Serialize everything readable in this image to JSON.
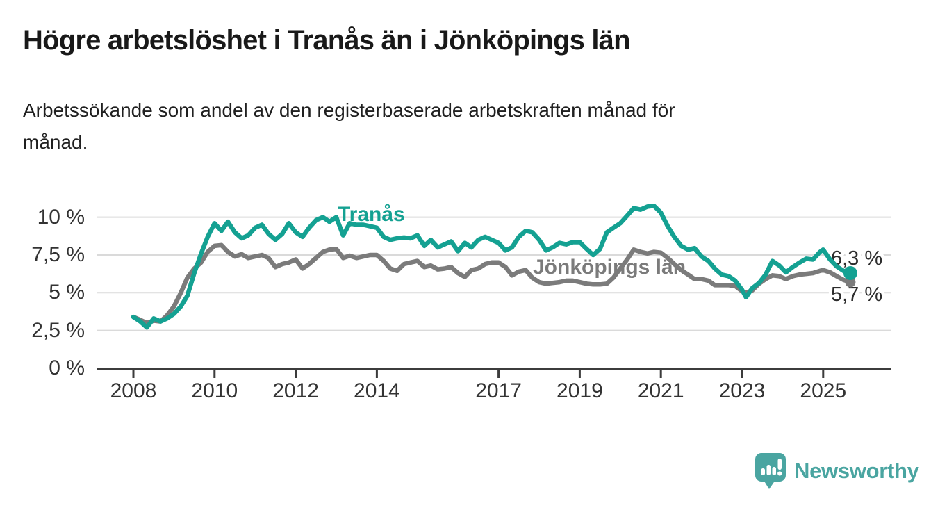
{
  "header": {
    "title": "Högre arbetslöshet i Tranås än i Jönköpings län",
    "subtitle": "Arbetssökande som andel av den registerbaserade arbetskraften månad för månad."
  },
  "branding": {
    "logo_text": "Newsworthy",
    "logo_icon": "speech-bubble-bar-chart"
  },
  "colors": {
    "tranas": "#14a192",
    "jonkoping": "#7b7b7b",
    "grid": "#dadada",
    "axis": "#3c3c3c",
    "value_label": "#2d2d2d",
    "tick_text": "#333333",
    "logo": "#4aa5a1"
  },
  "chart_data": {
    "type": "line",
    "title": "Högre arbetslöshet i Tranås än i Jönköpings län",
    "subtitle": "Arbetssökande som andel av den registerbaserade arbetskraften månad för månad.",
    "unit": "%",
    "grid": "horizontal",
    "legend": "inline-labels",
    "ylim": [
      0,
      11.5
    ],
    "xlim": [
      2007.1,
      2026.7
    ],
    "y_ticks": [
      {
        "value": 0,
        "label": "0 %"
      },
      {
        "value": 2.5,
        "label": "2,5 %"
      },
      {
        "value": 5,
        "label": "5 %"
      },
      {
        "value": 7.5,
        "label": "7,5 %"
      },
      {
        "value": 10,
        "label": "10 %"
      }
    ],
    "x_ticks": [
      {
        "value": 2008,
        "label": "2008"
      },
      {
        "value": 2010,
        "label": "2010"
      },
      {
        "value": 2012,
        "label": "2012"
      },
      {
        "value": 2014,
        "label": "2014"
      },
      {
        "value": 2017,
        "label": "2017"
      },
      {
        "value": 2019,
        "label": "2019"
      },
      {
        "value": 2021,
        "label": "2021"
      },
      {
        "value": 2023,
        "label": "2023"
      },
      {
        "value": 2025,
        "label": "2025"
      }
    ],
    "x": [
      2008.0,
      2008.17,
      2008.33,
      2008.5,
      2008.67,
      2008.83,
      2009.0,
      2009.17,
      2009.33,
      2009.5,
      2009.67,
      2009.83,
      2010.0,
      2010.17,
      2010.33,
      2010.5,
      2010.67,
      2010.83,
      2011.0,
      2011.17,
      2011.33,
      2011.5,
      2011.67,
      2011.83,
      2012.0,
      2012.17,
      2012.33,
      2012.5,
      2012.67,
      2012.83,
      2013.0,
      2013.17,
      2013.33,
      2013.5,
      2013.67,
      2013.83,
      2014.0,
      2014.17,
      2014.33,
      2014.5,
      2014.67,
      2014.83,
      2015.0,
      2015.17,
      2015.33,
      2015.5,
      2015.67,
      2015.83,
      2016.0,
      2016.17,
      2016.33,
      2016.5,
      2016.67,
      2016.83,
      2017.0,
      2017.17,
      2017.33,
      2017.5,
      2017.67,
      2017.83,
      2018.0,
      2018.17,
      2018.33,
      2018.5,
      2018.67,
      2018.83,
      2019.0,
      2019.17,
      2019.33,
      2019.5,
      2019.67,
      2019.83,
      2020.0,
      2020.17,
      2020.33,
      2020.5,
      2020.67,
      2020.83,
      2021.0,
      2021.17,
      2021.33,
      2021.5,
      2021.67,
      2021.83,
      2022.0,
      2022.17,
      2022.33,
      2022.5,
      2022.67,
      2022.83,
      2023.0,
      2023.1,
      2023.25,
      2023.42,
      2023.58,
      2023.75,
      2023.92,
      2024.08,
      2024.25,
      2024.42,
      2024.58,
      2024.75,
      2024.92,
      2025.0,
      2025.17,
      2025.33,
      2025.5,
      2025.67
    ],
    "series": [
      {
        "name": "Tranås",
        "color": "#14a192",
        "end_label": "6,3 %",
        "end_value": 6.3,
        "values": [
          3.4,
          3.1,
          2.7,
          3.3,
          3.1,
          3.3,
          3.6,
          4.1,
          4.8,
          6.3,
          7.6,
          8.7,
          9.6,
          9.1,
          9.7,
          9.0,
          8.6,
          8.8,
          9.3,
          9.5,
          8.9,
          8.5,
          8.9,
          9.6,
          9.0,
          8.7,
          9.3,
          9.8,
          10.0,
          9.7,
          10.0,
          8.8,
          9.6,
          9.5,
          9.5,
          9.4,
          9.3,
          8.7,
          8.5,
          8.6,
          8.65,
          8.6,
          8.8,
          8.1,
          8.5,
          8.0,
          8.2,
          8.4,
          7.75,
          8.3,
          8.0,
          8.5,
          8.7,
          8.5,
          8.3,
          7.8,
          8.0,
          8.7,
          9.1,
          9.0,
          8.5,
          7.8,
          8.0,
          8.3,
          8.2,
          8.35,
          8.35,
          7.9,
          7.5,
          7.9,
          9.0,
          9.3,
          9.6,
          10.1,
          10.6,
          10.5,
          10.7,
          10.75,
          10.3,
          9.4,
          8.7,
          8.1,
          7.85,
          7.95,
          7.4,
          7.1,
          6.6,
          6.2,
          6.1,
          5.8,
          5.2,
          4.7,
          5.3,
          5.65,
          6.2,
          7.1,
          6.8,
          6.35,
          6.7,
          7.0,
          7.25,
          7.2,
          7.7,
          7.85,
          7.2,
          6.75,
          6.45,
          6.3
        ]
      },
      {
        "name": "Jönköpings län",
        "color": "#7b7b7b",
        "end_label": "5,7 %",
        "end_value": 5.7,
        "values": [
          3.4,
          3.2,
          3.0,
          3.15,
          3.1,
          3.5,
          4.1,
          5.0,
          6.0,
          6.6,
          7.0,
          7.7,
          8.1,
          8.15,
          7.7,
          7.4,
          7.55,
          7.3,
          7.4,
          7.5,
          7.3,
          6.7,
          6.9,
          7.0,
          7.2,
          6.6,
          6.9,
          7.3,
          7.7,
          7.85,
          7.9,
          7.3,
          7.45,
          7.3,
          7.4,
          7.5,
          7.5,
          7.1,
          6.6,
          6.45,
          6.9,
          7.0,
          7.1,
          6.7,
          6.8,
          6.55,
          6.6,
          6.7,
          6.3,
          6.05,
          6.5,
          6.6,
          6.9,
          7.0,
          7.0,
          6.7,
          6.15,
          6.4,
          6.5,
          6.0,
          5.7,
          5.6,
          5.65,
          5.7,
          5.8,
          5.8,
          5.7,
          5.6,
          5.55,
          5.55,
          5.6,
          6.0,
          6.6,
          7.2,
          7.85,
          7.7,
          7.6,
          7.7,
          7.65,
          7.3,
          6.9,
          6.5,
          6.2,
          5.9,
          5.9,
          5.8,
          5.5,
          5.5,
          5.5,
          5.45,
          5.1,
          5.0,
          5.15,
          5.6,
          5.9,
          6.15,
          6.1,
          5.9,
          6.1,
          6.2,
          6.25,
          6.3,
          6.45,
          6.5,
          6.35,
          6.1,
          5.85,
          5.7
        ]
      }
    ]
  }
}
